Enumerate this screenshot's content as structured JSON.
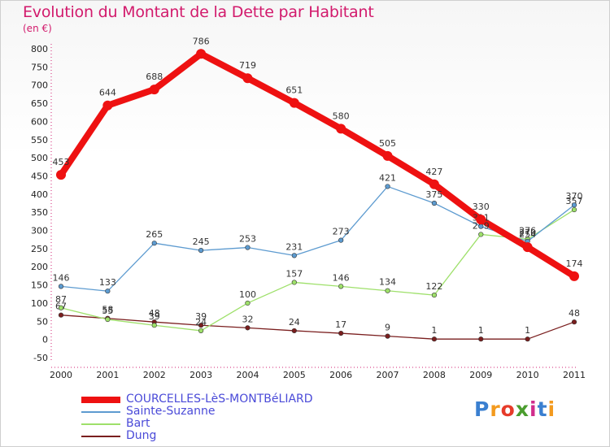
{
  "header": {
    "title": "Evolution du Montant de la Dette par Habitant",
    "unit": "(en €)"
  },
  "logo": {
    "text": "Proxiti"
  },
  "chart_data": {
    "type": "line",
    "title": "Evolution du Montant de la Dette par Habitant",
    "ylabel": "(en €)",
    "x": [
      "2000",
      "2001",
      "2002",
      "2003",
      "2004",
      "2005",
      "2006",
      "2007",
      "2008",
      "2009",
      "2010",
      "2011"
    ],
    "ylim": [
      -50,
      800
    ],
    "yticks": [
      -50,
      0,
      50,
      100,
      150,
      200,
      250,
      300,
      350,
      400,
      450,
      500,
      550,
      600,
      650,
      700,
      750,
      800
    ],
    "grid": false,
    "legend_position": "bottom",
    "series": [
      {
        "name": "COURCELLES-LèS-MONTBéLIARD",
        "color": "#ee1111",
        "width": 8,
        "values": [
          453,
          644,
          688,
          786,
          719,
          651,
          580,
          505,
          427,
          330,
          254,
          174
        ],
        "labels": [
          "453",
          "644",
          "688",
          "786",
          "719",
          "651",
          "580",
          "505",
          "427",
          "330",
          "254",
          "174"
        ]
      },
      {
        "name": "Sainte-Suzanne",
        "color": "#5d9bd0",
        "width": 1.3,
        "values": [
          146,
          133,
          265,
          245,
          253,
          231,
          273,
          421,
          375,
          311,
          270,
          370
        ],
        "labels": [
          "146",
          "133",
          "265",
          "245",
          "253",
          "231",
          "273",
          "421",
          "375",
          "311",
          "270",
          "370"
        ]
      },
      {
        "name": "Bart",
        "color": "#9ee06a",
        "width": 1.3,
        "values": [
          87,
          55,
          39,
          24,
          100,
          157,
          146,
          134,
          122,
          289,
          276,
          357
        ],
        "labels": [
          "87",
          "55",
          "39",
          "24",
          "100",
          "157",
          "146",
          "134",
          "122",
          "289",
          "276",
          "357"
        ]
      },
      {
        "name": "Dung",
        "color": "#7a1e1e",
        "width": 1.3,
        "values": [
          67,
          58,
          48,
          39,
          32,
          24,
          17,
          9,
          1,
          1,
          1,
          48
        ],
        "labels": [
          "67",
          "58",
          "48",
          "39",
          "32",
          "24",
          "17",
          "9",
          "1",
          "1",
          "1",
          "48"
        ]
      }
    ]
  }
}
